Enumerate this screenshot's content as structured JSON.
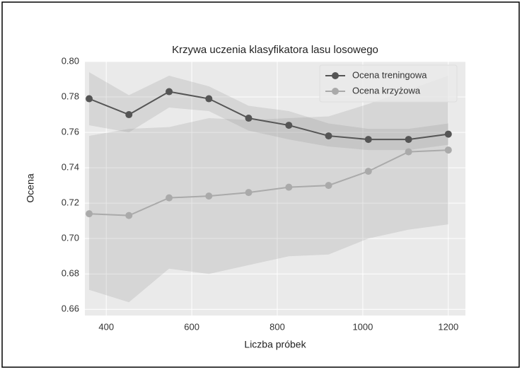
{
  "chart_data": {
    "type": "line",
    "title": "Krzywa uczenia klasyfikatora lasu losowego",
    "xlabel": "Liczba próbek",
    "ylabel": "Ocena",
    "x": [
      360,
      453,
      547,
      640,
      733,
      827,
      920,
      1013,
      1107,
      1200
    ],
    "series": [
      {
        "name": "Ocena treningowa",
        "color": "#555555",
        "values": [
          0.779,
          0.77,
          0.783,
          0.779,
          0.768,
          0.764,
          0.758,
          0.756,
          0.756,
          0.759
        ],
        "upper": [
          0.794,
          0.781,
          0.792,
          0.786,
          0.775,
          0.772,
          0.765,
          0.762,
          0.762,
          0.765
        ],
        "lower": [
          0.764,
          0.76,
          0.774,
          0.772,
          0.761,
          0.756,
          0.752,
          0.75,
          0.75,
          0.753
        ]
      },
      {
        "name": "Ocena krzyżowa",
        "color": "#aaaaaa",
        "values": [
          0.714,
          0.713,
          0.723,
          0.724,
          0.726,
          0.729,
          0.73,
          0.738,
          0.749,
          0.75
        ],
        "upper": [
          0.758,
          0.762,
          0.763,
          0.768,
          0.767,
          0.768,
          0.769,
          0.776,
          0.784,
          0.792
        ],
        "lower": [
          0.671,
          0.664,
          0.683,
          0.68,
          0.685,
          0.69,
          0.691,
          0.7,
          0.705,
          0.708
        ]
      }
    ],
    "xlim": [
      350,
      1240
    ],
    "ylim": [
      0.6565,
      0.8
    ],
    "xticks": [
      400,
      600,
      800,
      1000,
      1200
    ],
    "yticks": [
      0.66,
      0.68,
      {
        "value": 0.7,
        "label": "0.70"
      },
      0.72,
      0.74,
      0.76,
      0.78,
      {
        "value": 0.8,
        "label": "0.80"
      }
    ],
    "grid": true,
    "legend": "upper right"
  }
}
